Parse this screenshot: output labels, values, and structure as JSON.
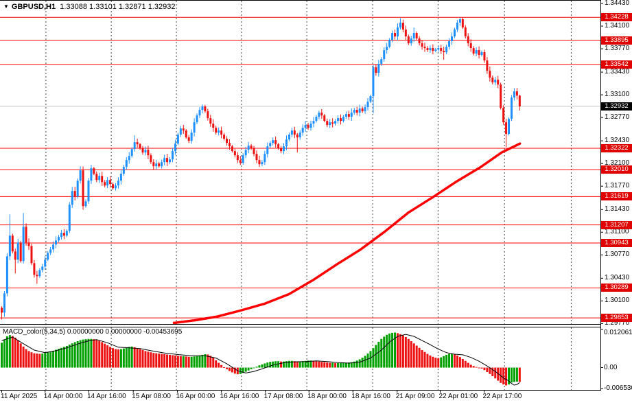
{
  "title": {
    "symbol_timeframe": "GBPUSD,H1",
    "ohlc": "1.33088 1.33101 1.32871 1.32932"
  },
  "colors": {
    "bull": "#1E90FF",
    "bear": "#EE1111",
    "level_line": "#FF0000",
    "current_price_line": "#C8C8C8",
    "badge_level_bg": "#E00000",
    "badge_current_bg": "#000000",
    "badge_text": "#FFFFFF",
    "macd_up": "#00A000",
    "macd_down": "#EE1111",
    "signal_line": "#000000",
    "trend_curve": "#FF0000",
    "grid": "#444444",
    "border": "#000000",
    "background": "#FFFFFF",
    "text": "#000000"
  },
  "price_axis": {
    "tick_labels": [
      "1.34430",
      "1.34100",
      "1.33770",
      "1.33430",
      "1.33100",
      "1.32770",
      "1.32430",
      "1.32100",
      "1.31770",
      "1.31430",
      "1.31100",
      "1.30770",
      "1.30430",
      "1.30100",
      "1.29770"
    ]
  },
  "level_badges": {
    "levels": [
      1.34228,
      1.33895,
      1.33542,
      1.32322,
      1.3201,
      1.31619,
      1.31207,
      1.30943,
      1.30289,
      1.29853
    ],
    "current": 1.32932
  },
  "time_axis": {
    "labels": [
      {
        "text": "11 Apr 2025",
        "bar": 0
      },
      {
        "text": "14 Apr 00:00",
        "bar": 16
      },
      {
        "text": "14 Apr 16:00",
        "bar": 32
      },
      {
        "text": "15 Apr 08:00",
        "bar": 48.5
      },
      {
        "text": "16 Apr 00:00",
        "bar": 64.8
      },
      {
        "text": "16 Apr 16:00",
        "bar": 81
      },
      {
        "text": "17 Apr 08:00",
        "bar": 97.2
      },
      {
        "text": "18 Apr 00:00",
        "bar": 113.3
      },
      {
        "text": "18 Apr 16:00",
        "bar": 129.5
      },
      {
        "text": "21 Apr 09:00",
        "bar": 145.8
      },
      {
        "text": "22 Apr 01:00",
        "bar": 161.7
      },
      {
        "text": "22 Apr 17:00",
        "bar": 177.9
      }
    ]
  },
  "macd_panel": {
    "label": "MACD_color(5,34,5) 0.00000000 0.00000000 -0.00453695",
    "axis_labels": [
      {
        "text": "0.0120612",
        "value": 0.0120612
      },
      {
        "text": "0.00",
        "value": 0
      },
      {
        "text": "-0.0065300",
        "value": -0.00653
      }
    ]
  },
  "chart_data": {
    "type": "candlestick",
    "symbol": "GBPUSD",
    "timeframe": "H1",
    "title": "GBPUSD,H1",
    "price_scale": {
      "top_price": 1.3448,
      "bottom_price": 1.29764
    },
    "bar_count": 192,
    "first_open": 1.3,
    "current_bar": {
      "open": 1.33088,
      "high": 1.33101,
      "low": 1.32871,
      "close": 1.32932
    },
    "closes": [
      1.2993,
      1.3021,
      1.3075,
      1.3105,
      1.3082,
      1.307,
      1.3095,
      1.3068,
      1.3118,
      1.3095,
      1.309,
      1.3065,
      1.3048,
      1.3046,
      1.3055,
      1.306,
      1.307,
      1.308,
      1.3085,
      1.3092,
      1.3098,
      1.3103,
      1.3109,
      1.3105,
      1.3112,
      1.315,
      1.317,
      1.3162,
      1.3185,
      1.32,
      1.3148,
      1.3155,
      1.3185,
      1.3203,
      1.3195,
      1.3186,
      1.3192,
      1.3183,
      1.3178,
      1.3186,
      1.318,
      1.3174,
      1.3178,
      1.3185,
      1.3195,
      1.3205,
      1.3215,
      1.3221,
      1.3231,
      1.3241,
      1.3238,
      1.3232,
      1.3226,
      1.323,
      1.3222,
      1.3212,
      1.3206,
      1.321,
      1.3206,
      1.3212,
      1.3218,
      1.3212,
      1.3216,
      1.3228,
      1.3239,
      1.3252,
      1.3261,
      1.3258,
      1.3248,
      1.3243,
      1.3255,
      1.327,
      1.328,
      1.3288,
      1.3293,
      1.3286,
      1.3276,
      1.3268,
      1.3262,
      1.3255,
      1.3258,
      1.3252,
      1.3246,
      1.324,
      1.3235,
      1.3228,
      1.3222,
      1.3215,
      1.3211,
      1.3222,
      1.323,
      1.3236,
      1.3232,
      1.3224,
      1.3215,
      1.3209,
      1.3212,
      1.3224,
      1.3235,
      1.324,
      1.3244,
      1.3238,
      1.3232,
      1.3228,
      1.3235,
      1.3245,
      1.3252,
      1.3258,
      1.3252,
      1.3248,
      1.3255,
      1.3262,
      1.3266,
      1.3262,
      1.3268,
      1.3272,
      1.3278,
      1.3284,
      1.328,
      1.3272,
      1.3266,
      1.327,
      1.3268,
      1.3272,
      1.3276,
      1.3272,
      1.3278,
      1.3282,
      1.3278,
      1.3284,
      1.3288,
      1.3284,
      1.329,
      1.3286,
      1.3292,
      1.33,
      1.3308,
      1.335,
      1.3342,
      1.3355,
      1.3362,
      1.3375,
      1.338,
      1.339,
      1.34,
      1.3395,
      1.3408,
      1.3415,
      1.3405,
      1.3395,
      1.3385,
      1.3392,
      1.34,
      1.3392,
      1.3385,
      1.338,
      1.3378,
      1.3375,
      1.3378,
      1.3374,
      1.3376,
      1.3378,
      1.3374,
      1.3372,
      1.338,
      1.3388,
      1.3395,
      1.3405,
      1.3415,
      1.342,
      1.3408,
      1.3395,
      1.3385,
      1.3378,
      1.337,
      1.3375,
      1.3368,
      1.3372,
      1.336,
      1.3345,
      1.3335,
      1.3328,
      1.3332,
      1.3325,
      1.3291,
      1.327,
      1.3253,
      1.3275,
      1.3306,
      1.3315,
      1.33088,
      1.32932
    ],
    "wick_overrides": {
      "0": {
        "low": 1.2983
      },
      "1": {
        "low": 1.2987
      },
      "3": {
        "high": 1.3136
      },
      "5": {
        "low": 1.305
      },
      "8": {
        "high": 1.3138
      },
      "13": {
        "low": 1.3035
      },
      "26": {
        "high": 1.3176
      },
      "29": {
        "high": 1.3206
      },
      "49": {
        "high": 1.3251
      },
      "56": {
        "low": 1.3201
      },
      "74": {
        "high": 1.3296
      },
      "88": {
        "low": 1.3208
      },
      "95": {
        "low": 1.3205
      },
      "109": {
        "low": 1.3226
      },
      "117": {
        "high": 1.3287
      },
      "137": {
        "low": 1.3283
      },
      "147": {
        "high": 1.34215
      },
      "152": {
        "high": 1.3408
      },
      "163": {
        "low": 1.3361
      },
      "169": {
        "high": 1.34225
      },
      "186": {
        "low": 1.3234
      },
      "190": {
        "high": 1.332
      },
      "191": {
        "high": 1.33101,
        "low": 1.32871
      }
    },
    "trend_curve_points": [
      [
        63.5,
        1.2978
      ],
      [
        71.6,
        1.2982
      ],
      [
        79.2,
        1.2987
      ],
      [
        88,
        1.2996
      ],
      [
        97,
        1.3006
      ],
      [
        106,
        1.302
      ],
      [
        114.7,
        1.304
      ],
      [
        123.5,
        1.3063
      ],
      [
        132.4,
        1.3085
      ],
      [
        141.3,
        1.3111
      ],
      [
        150.1,
        1.3139
      ],
      [
        159,
        1.3161
      ],
      [
        167.8,
        1.3184
      ],
      [
        176.7,
        1.3205
      ],
      [
        184.3,
        1.3226
      ],
      [
        191.1,
        1.3239
      ]
    ],
    "day_separator_bars": [
      16.3,
      40.4,
      64.4,
      88.4,
      112.5,
      136.8,
      160.9,
      185.4,
      210
    ],
    "macd": {
      "type": "histogram+signal",
      "unit": 0.0001,
      "hist_e4": [
        78,
        88,
        98,
        102,
        99,
        94,
        86,
        76,
        66,
        58,
        52,
        48,
        45,
        44,
        43,
        44,
        46,
        48,
        50,
        53,
        56,
        59,
        62,
        65,
        68,
        72,
        76,
        80,
        83,
        86,
        88,
        89,
        90,
        90,
        89,
        87,
        84,
        80,
        75,
        70,
        65,
        61,
        58,
        57,
        58,
        60,
        63,
        65,
        66,
        64,
        61,
        58,
        55,
        52,
        50,
        48,
        46,
        45,
        44,
        43,
        42,
        41,
        40,
        39,
        38,
        37,
        36,
        36,
        35,
        34,
        34,
        35,
        36,
        38,
        40,
        42,
        41,
        37,
        31,
        23,
        15,
        8,
        1,
        -5,
        -11,
        -15,
        -19,
        -21,
        -20,
        -17,
        -13,
        -9,
        -5,
        -1,
        3,
        7,
        10,
        13,
        16,
        18,
        19,
        20,
        20,
        19,
        19,
        20,
        21,
        21,
        20,
        19,
        19,
        20,
        21,
        22,
        22,
        21,
        20,
        19,
        18,
        17,
        16,
        15,
        15,
        14,
        14,
        14,
        15,
        15,
        16,
        17,
        19,
        22,
        26,
        31,
        37,
        44,
        52,
        61,
        71,
        81,
        90,
        97,
        103,
        107,
        109,
        110,
        108,
        105,
        101,
        96,
        90,
        83,
        76,
        69,
        62,
        55,
        49,
        43,
        38,
        34,
        31,
        30,
        32,
        36,
        40,
        43,
        44,
        42,
        38,
        33,
        27,
        21,
        15,
        9,
        5,
        2,
        0,
        -3,
        -8,
        -14,
        -20,
        -27,
        -34,
        -41,
        -48,
        -53,
        -56,
        -53,
        -47,
        -45,
        -44,
        -45
      ],
      "signal_points_e4": [
        [
          0,
          85
        ],
        [
          4,
          96
        ],
        [
          8,
          75
        ],
        [
          12,
          55
        ],
        [
          16,
          47
        ],
        [
          20,
          53
        ],
        [
          24,
          62
        ],
        [
          28,
          74
        ],
        [
          32,
          84
        ],
        [
          35,
          88
        ],
        [
          39,
          78
        ],
        [
          43,
          64
        ],
        [
          47,
          62
        ],
        [
          51,
          60
        ],
        [
          55,
          53
        ],
        [
          60,
          46
        ],
        [
          65,
          41
        ],
        [
          70,
          37
        ],
        [
          75,
          37
        ],
        [
          79,
          30
        ],
        [
          83,
          12
        ],
        [
          87,
          -10
        ],
        [
          90,
          -17
        ],
        [
          93,
          -12
        ],
        [
          96,
          -4
        ],
        [
          100,
          8
        ],
        [
          104,
          15
        ],
        [
          108,
          18
        ],
        [
          112,
          19
        ],
        [
          116,
          21
        ],
        [
          120,
          19
        ],
        [
          124,
          16
        ],
        [
          128,
          14
        ],
        [
          132,
          17
        ],
        [
          136,
          30
        ],
        [
          140,
          55
        ],
        [
          143,
          80
        ],
        [
          146,
          98
        ],
        [
          149,
          104
        ],
        [
          152,
          98
        ],
        [
          155,
          85
        ],
        [
          158,
          72
        ],
        [
          161,
          58
        ],
        [
          164,
          47
        ],
        [
          167,
          42
        ],
        [
          170,
          40
        ],
        [
          173,
          32
        ],
        [
          176,
          20
        ],
        [
          179,
          5
        ],
        [
          182,
          -12
        ],
        [
          185,
          -32
        ],
        [
          187,
          -42
        ],
        [
          188,
          -50
        ],
        [
          189,
          -55
        ],
        [
          190,
          -53
        ],
        [
          191,
          -47
        ]
      ]
    }
  }
}
